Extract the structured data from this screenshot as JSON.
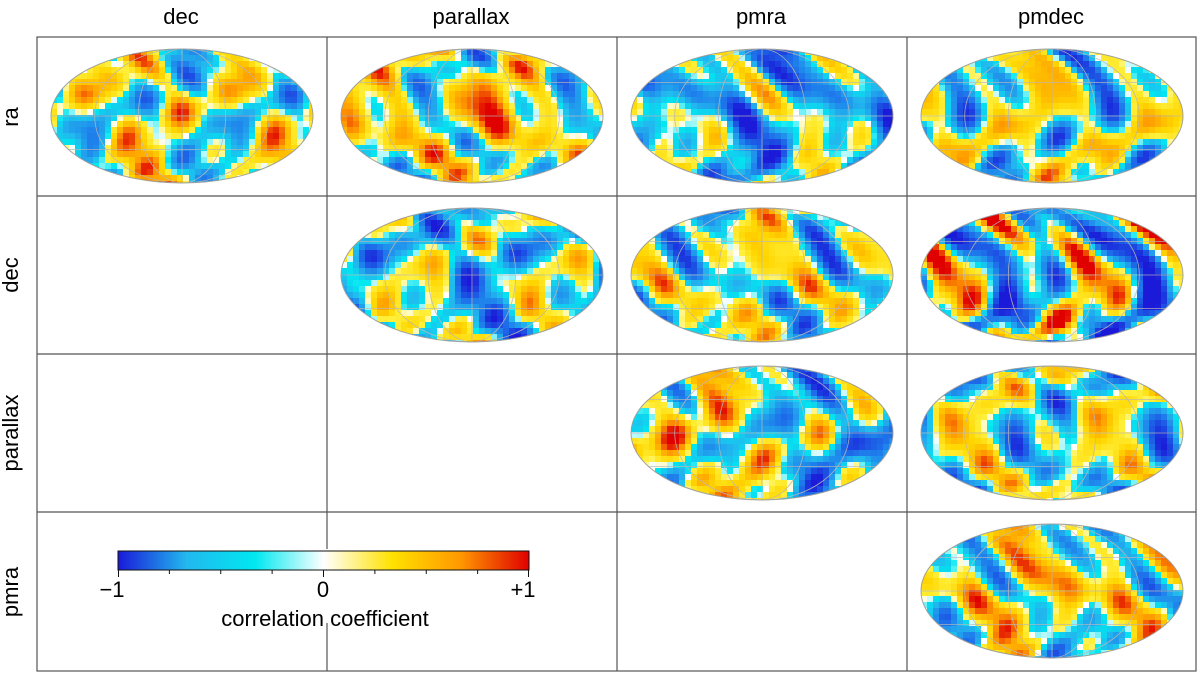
{
  "chart_data": {
    "type": "heatmap",
    "projection": "Mollweide all-sky maps",
    "layout": "upper-triangular correlation matrix",
    "columns": [
      "dec",
      "parallax",
      "pmra",
      "pmdec"
    ],
    "rows": [
      "ra",
      "dec",
      "parallax",
      "pmra"
    ],
    "cells": [
      {
        "row": "ra",
        "col": "dec",
        "dominant": "mixed",
        "bias": 0.05
      },
      {
        "row": "ra",
        "col": "parallax",
        "dominant": "positive-center",
        "bias": 0.15
      },
      {
        "row": "ra",
        "col": "pmra",
        "dominant": "negative",
        "bias": -0.25
      },
      {
        "row": "ra",
        "col": "pmdec",
        "dominant": "mixed",
        "bias": 0.0
      },
      {
        "row": "dec",
        "col": "parallax",
        "dominant": "negative",
        "bias": -0.15
      },
      {
        "row": "dec",
        "col": "pmra",
        "dominant": "mixed",
        "bias": 0.0
      },
      {
        "row": "dec",
        "col": "pmdec",
        "dominant": "strong stripes",
        "bias": -0.05
      },
      {
        "row": "parallax",
        "col": "pmra",
        "dominant": "positive-left/negative-right",
        "bias": 0.0
      },
      {
        "row": "parallax",
        "col": "pmdec",
        "dominant": "mixed",
        "bias": -0.05
      },
      {
        "row": "pmra",
        "col": "pmdec",
        "dominant": "positive-center",
        "bias": 0.1
      }
    ],
    "colorbar": {
      "label": "correlation coefficient",
      "range": [
        -1,
        1
      ],
      "ticks": [
        "−1",
        "0",
        "+1"
      ],
      "colors": [
        "#1a1ad8",
        "#22b8ee",
        "#00e8f0",
        "#ffffff",
        "#ffe200",
        "#ff9800",
        "#e00000"
      ]
    }
  }
}
